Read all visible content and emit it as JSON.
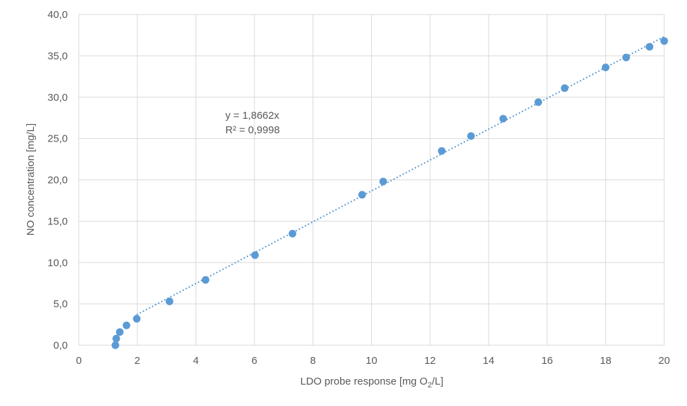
{
  "chart_data": {
    "type": "scatter",
    "xlabel_prefix": "LDO probe response [mg O",
    "xlabel_sub": "2",
    "xlabel_suffix": "/L]",
    "ylabel": "NO concentration [mg/L]",
    "xlim": [
      0,
      20
    ],
    "ylim": [
      0,
      40
    ],
    "x_ticks": [
      "0",
      "2",
      "4",
      "6",
      "8",
      "10",
      "12",
      "14",
      "16",
      "18",
      "20"
    ],
    "y_ticks": [
      "0,0",
      "5,0",
      "10,0",
      "15,0",
      "20,0",
      "25,0",
      "30,0",
      "35,0",
      "40,0"
    ],
    "grid": true,
    "legend": "none",
    "series": [
      {
        "x": [
          1.25,
          1.28,
          1.4,
          1.63,
          1.98,
          3.1,
          4.33,
          6.02,
          7.3,
          9.68,
          10.4,
          12.4,
          13.4,
          14.5,
          15.7,
          16.6,
          18.0,
          18.7,
          19.5,
          20.0
        ],
        "y": [
          0.0,
          0.8,
          1.6,
          2.4,
          3.2,
          5.3,
          7.9,
          10.9,
          13.5,
          18.2,
          19.8,
          23.5,
          25.3,
          27.4,
          29.4,
          31.1,
          33.6,
          34.8,
          36.1,
          36.8
        ]
      }
    ],
    "trendline": {
      "slope": 1.8662,
      "x_start": 1.98,
      "x_end": 20,
      "equation": "y = 1,8662x",
      "r2": "R² = 0,9998"
    },
    "colors": {
      "marker": "#5b9bd5",
      "trendline": "#5b9bd5",
      "grid": "#d9d9d9",
      "text": "#595959"
    }
  }
}
